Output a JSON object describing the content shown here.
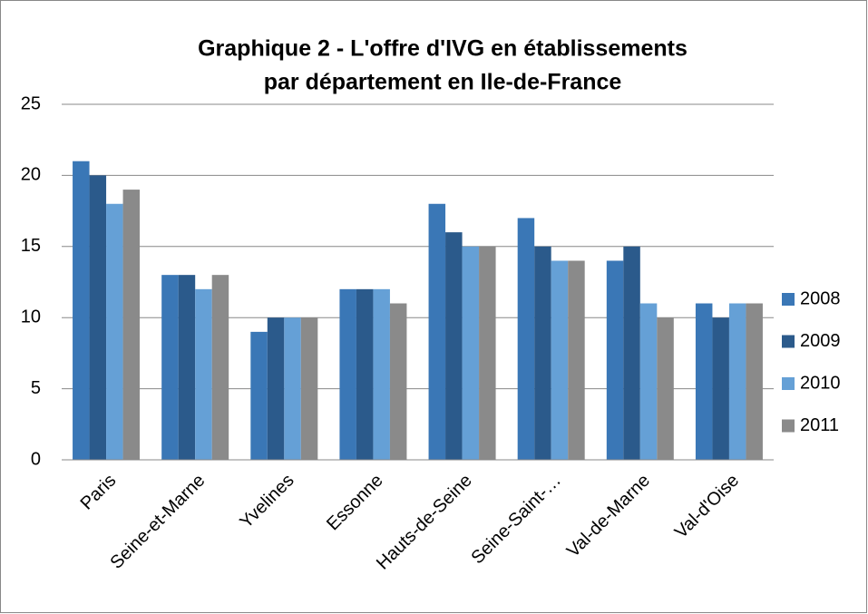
{
  "chart_data": {
    "type": "bar",
    "title": [
      "Graphique 2 - L'offre d'IVG en établissements",
      "par département en Ile-de-France"
    ],
    "categories": [
      "Paris",
      "Seine-et-Marne",
      "Yvelines",
      "Essonne",
      "Hauts-de-Seine",
      "Seine-Saint-…",
      "Val-de-Marne",
      "Val-d'Oise"
    ],
    "series": [
      {
        "name": "2008",
        "color": "#3a77b6",
        "values": [
          21,
          13,
          9,
          12,
          18,
          17,
          14,
          11
        ]
      },
      {
        "name": "2009",
        "color": "#2b5a8b",
        "values": [
          20,
          13,
          10,
          12,
          16,
          15,
          15,
          10
        ]
      },
      {
        "name": "2010",
        "color": "#65a0d6",
        "values": [
          18,
          12,
          10,
          12,
          15,
          14,
          11,
          11
        ]
      },
      {
        "name": "2011",
        "color": "#8a8a8a",
        "values": [
          19,
          13,
          10,
          11,
          15,
          14,
          10,
          11
        ]
      }
    ],
    "ylim": [
      0,
      25
    ],
    "yticks": [
      0,
      5,
      10,
      15,
      20,
      25
    ],
    "grid": true,
    "legend": "right"
  }
}
